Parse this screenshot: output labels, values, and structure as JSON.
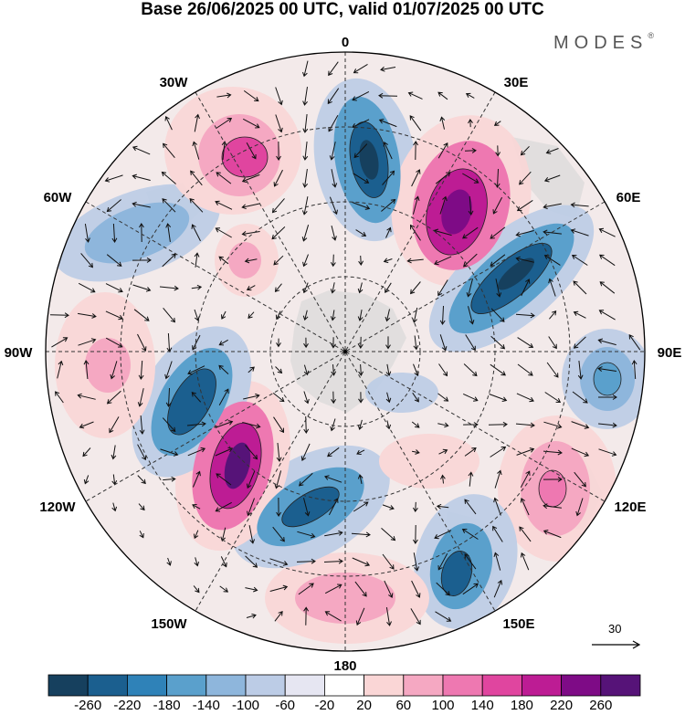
{
  "title": "Base 26/06/2025 00 UTC, valid 01/07/2025 00 UTC",
  "brand": "MODES",
  "brand_mark": "®",
  "longitude_labels": {
    "l0": "0",
    "l30e": "30E",
    "l60e": "60E",
    "l90e": "90E",
    "l120e": "120E",
    "l150e": "150E",
    "l180": "180",
    "l150w": "150W",
    "l120w": "120W",
    "l90w": "90W",
    "l60w": "60W",
    "l30w": "30W"
  },
  "reference_vector": {
    "label": "30"
  },
  "colorbar": {
    "labels": [
      "-260",
      "-220",
      "-180",
      "-140",
      "-100",
      "-60",
      "-20",
      "20",
      "60",
      "100",
      "140",
      "180",
      "220",
      "260"
    ],
    "colors": [
      "#16405e",
      "#1b5f8f",
      "#2f82b8",
      "#5aa0cc",
      "#8eb6dc",
      "#bccce6",
      "#e6e6f2",
      "#ffffff",
      "#fad6d6",
      "#f5a8c2",
      "#ee78b1",
      "#e0459f",
      "#bd1c94",
      "#7e0b86",
      "#561378"
    ]
  },
  "field_colors": {
    "neg_strong": "#1b5f8f",
    "neg_mid": "#5aa0cc",
    "neg_weak": "#bccce6",
    "pos_weak": "#fad6d6",
    "pos_mid": "#ee78b1",
    "pos_strong": "#7e0b86",
    "land": "#d8d8d8"
  }
}
